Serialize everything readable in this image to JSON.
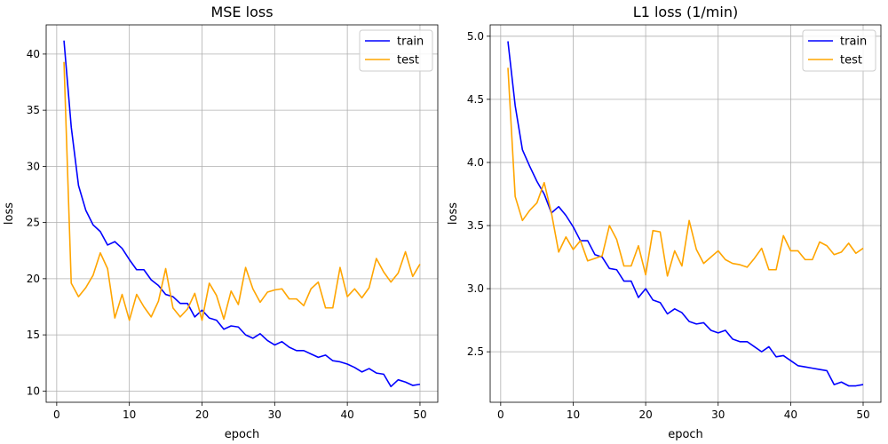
{
  "chart_data": [
    {
      "type": "line",
      "title": "MSE loss",
      "xlabel": "epoch",
      "ylabel": "loss",
      "xlim": [
        -1.45,
        52.45
      ],
      "ylim": [
        9.0,
        42.6
      ],
      "xticks": [
        0,
        10,
        20,
        30,
        40,
        50
      ],
      "yticks": [
        10,
        15,
        20,
        25,
        30,
        35,
        40
      ],
      "grid": true,
      "legend_position": "top-right",
      "x": [
        1,
        2,
        3,
        4,
        5,
        6,
        7,
        8,
        9,
        10,
        11,
        12,
        13,
        14,
        15,
        16,
        17,
        18,
        19,
        20,
        21,
        22,
        23,
        24,
        25,
        26,
        27,
        28,
        29,
        30,
        31,
        32,
        33,
        34,
        35,
        36,
        37,
        38,
        39,
        40,
        41,
        42,
        43,
        44,
        45,
        46,
        47,
        48,
        49,
        50
      ],
      "series": [
        {
          "name": "train",
          "color": "#0000ff",
          "values": [
            41.2,
            33.5,
            28.3,
            26.1,
            24.8,
            24.2,
            23.0,
            23.3,
            22.7,
            21.7,
            20.8,
            20.8,
            19.9,
            19.4,
            18.6,
            18.4,
            17.8,
            17.8,
            16.6,
            17.2,
            16.5,
            16.3,
            15.5,
            15.8,
            15.7,
            15.0,
            14.7,
            15.1,
            14.5,
            14.1,
            14.4,
            13.9,
            13.6,
            13.6,
            13.3,
            13.0,
            13.2,
            12.7,
            12.6,
            12.4,
            12.1,
            11.7,
            12.0,
            11.6,
            11.5,
            10.4,
            11.0,
            10.8,
            10.5,
            10.6
          ]
        },
        {
          "name": "test",
          "color": "#ffa500",
          "values": [
            39.3,
            19.6,
            18.4,
            19.2,
            20.3,
            22.3,
            20.9,
            16.5,
            18.6,
            16.3,
            18.6,
            17.5,
            16.6,
            18.0,
            20.9,
            17.4,
            16.6,
            17.3,
            18.7,
            16.3,
            19.6,
            18.5,
            16.4,
            18.9,
            17.7,
            21.0,
            19.1,
            17.9,
            18.8,
            19.0,
            19.1,
            18.2,
            18.2,
            17.6,
            19.1,
            19.7,
            17.4,
            17.4,
            21.0,
            18.4,
            19.1,
            18.3,
            19.2,
            21.8,
            20.6,
            19.7,
            20.5,
            22.4,
            20.2,
            21.3
          ]
        }
      ]
    },
    {
      "type": "line",
      "title": "L1 loss (1/min)",
      "xlabel": "epoch",
      "ylabel": "loss",
      "xlim": [
        -1.45,
        52.45
      ],
      "ylim": [
        2.1,
        5.09
      ],
      "xticks": [
        0,
        10,
        20,
        30,
        40,
        50
      ],
      "yticks": [
        2.5,
        3.0,
        3.5,
        4.0,
        4.5,
        5.0
      ],
      "ytick_labels": [
        "2.5",
        "3.0",
        "3.5",
        "4.0",
        "4.5",
        "5.0"
      ],
      "grid": true,
      "legend_position": "top-right",
      "x": [
        1,
        2,
        3,
        4,
        5,
        6,
        7,
        8,
        9,
        10,
        11,
        12,
        13,
        14,
        15,
        16,
        17,
        18,
        19,
        20,
        21,
        22,
        23,
        24,
        25,
        26,
        27,
        28,
        29,
        30,
        31,
        32,
        33,
        34,
        35,
        36,
        37,
        38,
        39,
        40,
        41,
        42,
        43,
        44,
        45,
        46,
        47,
        48,
        49,
        50
      ],
      "series": [
        {
          "name": "train",
          "color": "#0000ff",
          "values": [
            4.96,
            4.45,
            4.1,
            3.97,
            3.85,
            3.75,
            3.6,
            3.65,
            3.58,
            3.49,
            3.38,
            3.38,
            3.27,
            3.25,
            3.16,
            3.15,
            3.06,
            3.06,
            2.93,
            3.0,
            2.91,
            2.89,
            2.8,
            2.84,
            2.81,
            2.74,
            2.72,
            2.73,
            2.67,
            2.65,
            2.67,
            2.6,
            2.58,
            2.58,
            2.54,
            2.5,
            2.54,
            2.46,
            2.47,
            2.43,
            2.39,
            2.38,
            2.37,
            2.36,
            2.35,
            2.24,
            2.26,
            2.23,
            2.23,
            2.24
          ]
        },
        {
          "name": "test",
          "color": "#ffa500",
          "values": [
            4.75,
            3.73,
            3.54,
            3.62,
            3.68,
            3.84,
            3.6,
            3.29,
            3.41,
            3.31,
            3.38,
            3.22,
            3.24,
            3.26,
            3.5,
            3.39,
            3.18,
            3.18,
            3.34,
            3.11,
            3.46,
            3.45,
            3.1,
            3.3,
            3.18,
            3.54,
            3.31,
            3.2,
            3.25,
            3.3,
            3.23,
            3.2,
            3.19,
            3.17,
            3.24,
            3.32,
            3.15,
            3.15,
            3.42,
            3.3,
            3.3,
            3.23,
            3.23,
            3.37,
            3.34,
            3.27,
            3.29,
            3.36,
            3.28,
            3.32
          ]
        }
      ]
    }
  ]
}
